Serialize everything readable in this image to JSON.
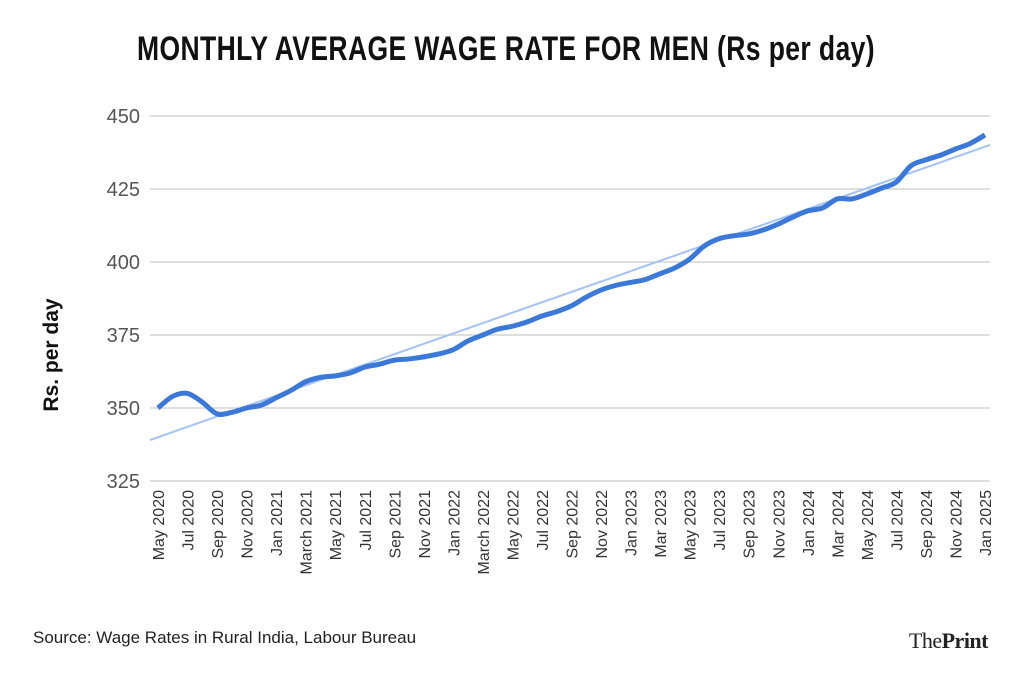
{
  "chart_data": {
    "type": "line",
    "title": "MONTHLY AVERAGE WAGE RATE FOR MEN (Rs per day)",
    "ylabel": "Rs. per day",
    "xlabel": "",
    "ylim": [
      325,
      450
    ],
    "yticks": [
      325,
      350,
      375,
      400,
      425,
      450
    ],
    "grid": true,
    "x": [
      "May 2020",
      "Jun 2020",
      "Jul 2020",
      "Aug 2020",
      "Sep 2020",
      "Oct 2020",
      "Nov 2020",
      "Dec 2020",
      "Jan 2021",
      "Feb 2021",
      "Mar 2021",
      "Apr 2021",
      "May 2021",
      "Jun 2021",
      "Jul 2021",
      "Aug 2021",
      "Sep 2021",
      "Oct 2021",
      "Nov 2021",
      "Dec 2021",
      "Jan 2022",
      "Feb 2022",
      "Mar 2022",
      "Apr 2022",
      "May 2022",
      "Jun 2022",
      "Jul 2022",
      "Aug 2022",
      "Sep 2022",
      "Oct 2022",
      "Nov 2022",
      "Dec 2022",
      "Jan 2023",
      "Feb 2023",
      "Mar 2023",
      "Apr 2023",
      "May 2023",
      "Jun 2023",
      "Jul 2023",
      "Aug 2023",
      "Sep 2023",
      "Oct 2023",
      "Nov 2023",
      "Dec 2023",
      "Jan 2024",
      "Feb 2024",
      "Mar 2024",
      "Apr 2024",
      "May 2024",
      "Jun 2024",
      "Jul 2024",
      "Aug 2024",
      "Sep 2024",
      "Oct 2024",
      "Nov 2024",
      "Dec 2024",
      "Jan 2025"
    ],
    "xtick_labels": [
      "May 2020",
      "Jul 2020",
      "Sep 2020",
      "Nov 2020",
      "Jan 2021",
      "March 2021",
      "May 2021",
      "Jul 2021",
      "Sep 2021",
      "Nov 2021",
      "Jan 2022",
      "March 2022",
      "May 2022",
      "Jul 2022",
      "Sep 2022",
      "Nov 2022",
      "Jan 2023",
      "Mar 2023",
      "May 2023",
      "Jul 2023",
      "Sep 2023",
      "Nov 2023",
      "Jan 2024",
      "Mar 2024",
      "May 2024",
      "Jul 2024",
      "Sep 2024",
      "Nov 2024",
      "Jan 2025"
    ],
    "series": [
      {
        "values": [
          350,
          354,
          355,
          352,
          348,
          348.5,
          350,
          351,
          353.5,
          356,
          359,
          360.5,
          361,
          362,
          364,
          365,
          366.4,
          366.8,
          367.5,
          368.5,
          370,
          373,
          375,
          377,
          378,
          379.5,
          381.5,
          383,
          385,
          388,
          390.4,
          392,
          393,
          394,
          396,
          398,
          401,
          405.5,
          408,
          409,
          409.6,
          411,
          413,
          415.4,
          417.5,
          418.5,
          421.6,
          421.6,
          423.3,
          425.3,
          427.4,
          433,
          435,
          436.6,
          438.7,
          440.6,
          443.5
        ],
        "color": "#3c78d8"
      }
    ],
    "trendline": {
      "start": 340,
      "end": 439.5,
      "color": "#a4c2f4"
    }
  },
  "footer": {
    "source": "Source: Wage Rates in Rural India, Labour Bureau",
    "logo": "ThePrint"
  }
}
